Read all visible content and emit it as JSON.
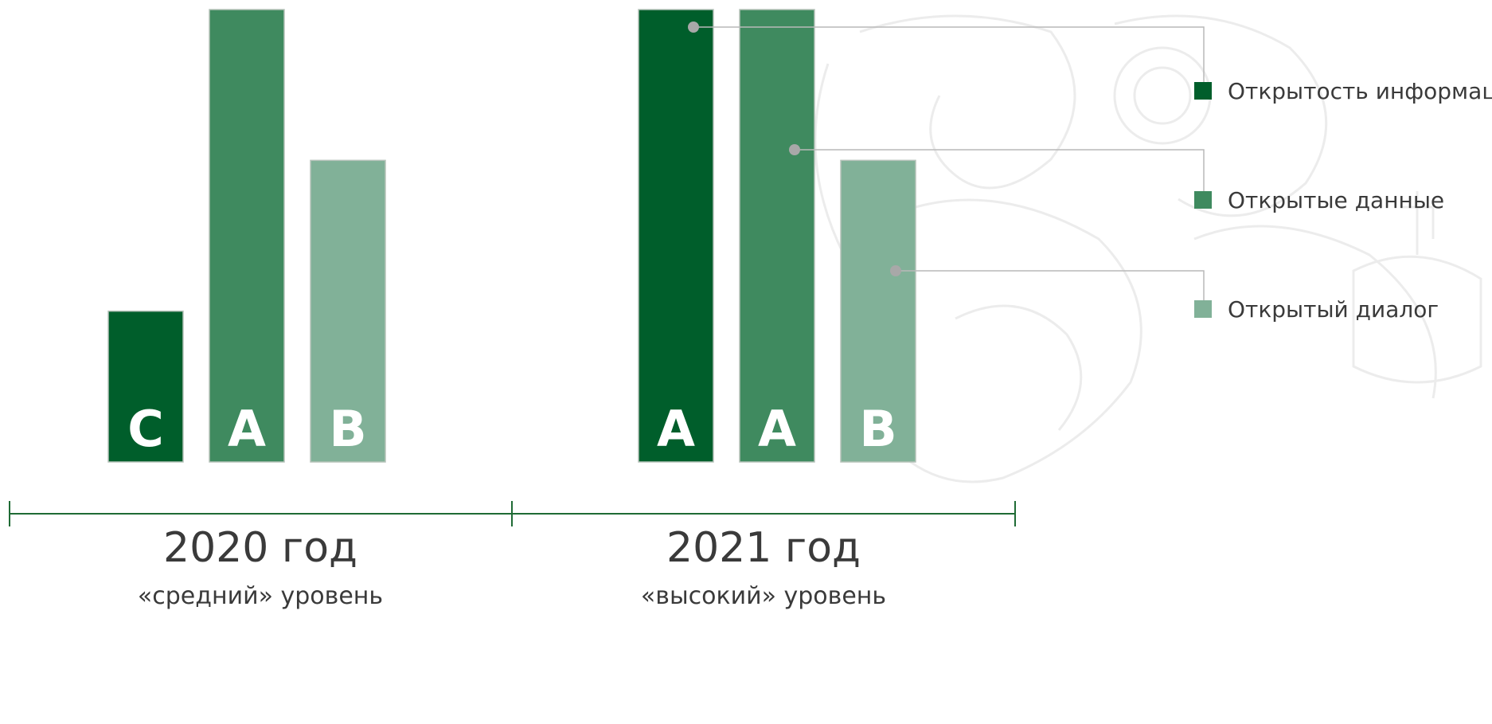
{
  "chart_data": {
    "type": "bar",
    "categories": [
      "2020 год",
      "2021 год"
    ],
    "sublabels": [
      "«средний» уровень",
      "«высокий» уровень"
    ],
    "rating_scale": [
      "C",
      "B",
      "A"
    ],
    "series": [
      {
        "name": "Открытость информации",
        "color": "#005e2b",
        "ratings": [
          "C",
          "A"
        ],
        "values": [
          1,
          3
        ]
      },
      {
        "name": "Открытые данные",
        "color": "#3f8a5f",
        "ratings": [
          "A",
          "A"
        ],
        "values": [
          3,
          3
        ]
      },
      {
        "name": "Открытый диалог",
        "color": "#81b198",
        "ratings": [
          "B",
          "B"
        ],
        "values": [
          2,
          2
        ]
      }
    ],
    "ylim": [
      0,
      3
    ],
    "legend": "right",
    "grid": false,
    "axis_color": "#1f6b35"
  }
}
